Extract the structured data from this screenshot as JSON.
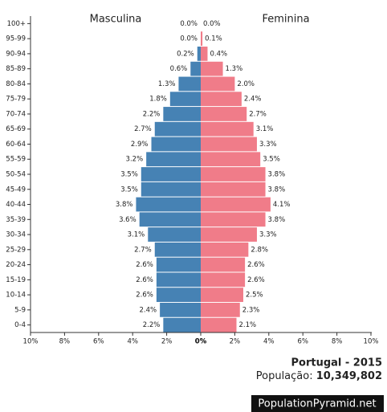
{
  "chart_data": {
    "type": "pyramid",
    "left_title": "Masculina",
    "right_title": "Feminina",
    "categories": [
      "100+",
      "95-99",
      "90-94",
      "85-89",
      "80-84",
      "75-79",
      "70-74",
      "65-69",
      "60-64",
      "55-59",
      "50-54",
      "45-49",
      "40-44",
      "35-39",
      "30-34",
      "25-29",
      "20-24",
      "15-19",
      "10-14",
      "5-9",
      "0-4"
    ],
    "series": [
      {
        "name": "Masculina",
        "color": "#4682b4",
        "values": [
          0.0,
          0.0,
          0.2,
          0.6,
          1.3,
          1.8,
          2.2,
          2.7,
          2.9,
          3.2,
          3.5,
          3.5,
          3.8,
          3.6,
          3.1,
          2.7,
          2.6,
          2.6,
          2.6,
          2.4,
          2.2
        ],
        "value_labels": [
          "0.0%",
          "0.0%",
          "0.2%",
          "0.6%",
          "1.3%",
          "1.8%",
          "2.2%",
          "2.7%",
          "2.9%",
          "3.2%",
          "3.5%",
          "3.5%",
          "3.8%",
          "3.6%",
          "3.1%",
          "2.7%",
          "2.6%",
          "2.6%",
          "2.6%",
          "2.4%",
          "2.2%"
        ]
      },
      {
        "name": "Feminina",
        "color": "#f07c89",
        "values": [
          0.0,
          0.1,
          0.4,
          1.3,
          2.0,
          2.4,
          2.7,
          3.1,
          3.3,
          3.5,
          3.8,
          3.8,
          4.1,
          3.8,
          3.3,
          2.8,
          2.6,
          2.6,
          2.5,
          2.3,
          2.1
        ],
        "value_labels": [
          "0.0%",
          "0.1%",
          "0.4%",
          "1.3%",
          "2.0%",
          "2.4%",
          "2.7%",
          "3.1%",
          "3.3%",
          "3.5%",
          "3.8%",
          "3.8%",
          "4.1%",
          "3.8%",
          "3.3%",
          "2.8%",
          "2.6%",
          "2.6%",
          "2.5%",
          "2.3%",
          "2.1%"
        ]
      }
    ],
    "xlim": [
      0,
      10
    ],
    "xticks": [
      {
        "value": 0,
        "label": "0%"
      },
      {
        "value": 2,
        "label": "2%"
      },
      {
        "value": 4,
        "label": "4%"
      },
      {
        "value": 6,
        "label": "6%"
      },
      {
        "value": 8,
        "label": "8%"
      },
      {
        "value": 10,
        "label": "10%"
      }
    ],
    "country_year": "Portugal - 2015",
    "population_label": "População:",
    "population": "10,349,802",
    "source": "PopulationPyramid.net"
  }
}
